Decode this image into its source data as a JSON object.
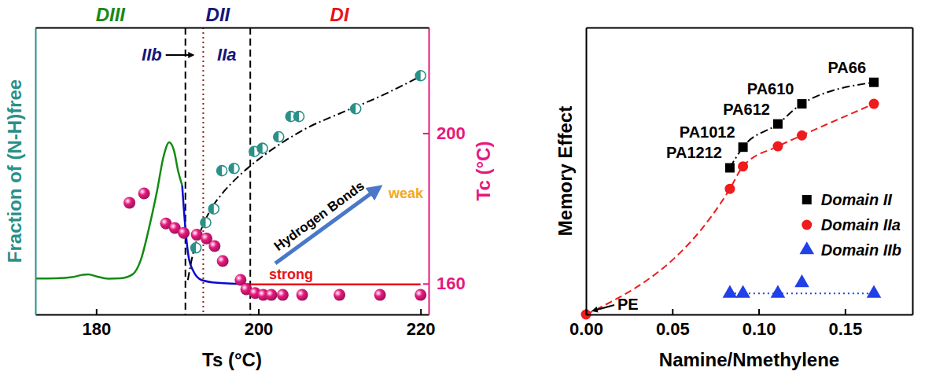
{
  "chart_data": [
    {
      "type": "line",
      "x_label": "Ts (°C)",
      "y_label": "Fraction of (N-H)free",
      "y2_label": "Tc (°C)",
      "xlim": [
        172.5,
        221
      ],
      "xticks": [
        180,
        200,
        220
      ],
      "ylim": [
        0,
        1
      ],
      "y2lim": [
        151.8,
        228.1
      ],
      "y2ticks": [
        160,
        200
      ],
      "regions": [
        "DIII",
        "DII",
        "DI"
      ],
      "subregions": [
        "IIb",
        "IIa"
      ],
      "vlines": [
        {
          "x": 191,
          "line_style": "dashed"
        },
        {
          "x": 199,
          "line_style": "dashed"
        },
        {
          "x": 193.2,
          "line_style": "dotted"
        }
      ],
      "annotations": [
        "Hydrogen Bonds",
        "strong",
        "weak"
      ],
      "series": [
        {
          "type": "line",
          "color": "#128c12",
          "x": [
            172.5,
            175,
            177,
            178.3,
            179,
            180,
            181.5,
            183,
            184.5,
            185.5,
            186.5,
            187.5,
            188.3,
            189,
            189.6,
            190.1,
            190.6
          ],
          "values": [
            0.125,
            0.126,
            0.13,
            0.138,
            0.14,
            0.133,
            0.125,
            0.126,
            0.14,
            0.19,
            0.3,
            0.43,
            0.55,
            0.6,
            0.57,
            0.5,
            0.45
          ]
        },
        {
          "type": "line",
          "color": "#0a0ad0",
          "x": [
            190.6,
            191,
            191.4,
            192,
            193,
            195,
            199
          ],
          "values": [
            0.45,
            0.3,
            0.2,
            0.15,
            0.12,
            0.11,
            0.105
          ]
        },
        {
          "type": "line",
          "color": "#e8141a",
          "x": [
            199,
            220
          ],
          "values": [
            0.105,
            0.105
          ]
        },
        {
          "type": "scatter",
          "marker": "half-circle",
          "color": "#2a9088",
          "x": [
            192.3,
            193.5,
            194.5,
            195.5,
            197,
            199.5,
            200.5,
            202.5,
            204,
            205,
            212,
            220
          ],
          "values": [
            0.232,
            0.32,
            0.368,
            0.501,
            0.509,
            0.568,
            0.579,
            0.619,
            0.69,
            0.69,
            0.717,
            0.832
          ]
        },
        {
          "type": "line",
          "line_style": "dash-dot",
          "color": "#000000",
          "x": [
            191.3,
            192,
            193,
            194,
            195.5,
            197.5,
            200,
            203,
            206,
            210,
            215,
            220
          ],
          "values": [
            0.12,
            0.22,
            0.3,
            0.36,
            0.42,
            0.48,
            0.54,
            0.6,
            0.65,
            0.7,
            0.76,
            0.83
          ]
        },
        {
          "type": "scatter",
          "marker": "sphere",
          "color": "#e6197f",
          "axis": "y2",
          "x": [
            184.1,
            185.9,
            188.6,
            189.7,
            190.8,
            192.4,
            193.6,
            194.6,
            195.6,
            197.8,
            198.5,
            199.6,
            200.6,
            201.6,
            203,
            205.4,
            210,
            215,
            220
          ],
          "values": [
            181.5,
            184,
            176,
            174.8,
            173.5,
            173,
            172,
            170,
            166,
            161,
            158.5,
            157.5,
            157,
            157,
            157,
            157,
            157,
            157,
            157
          ]
        }
      ]
    },
    {
      "type": "scatter",
      "x_label": "Namine/Nmethylene",
      "y_label": "Memory Effect",
      "xlim": [
        0,
        0.189
      ],
      "xticks": [
        {
          "value": 0,
          "label": "0.00"
        },
        0.05,
        {
          "value": 0.1,
          "label": "0.10"
        },
        0.15
      ],
      "ylim": [
        0,
        1
      ],
      "legend": "right",
      "series": [
        {
          "name": "Domain II",
          "color": "#000000",
          "marker": "square",
          "line_style": "dash-dot",
          "x": [
            0.0833,
            0.0909,
            0.1111,
            0.125,
            0.1667
          ],
          "values": [
            0.511,
            0.583,
            0.664,
            0.734,
            0.809
          ],
          "labels": [
            "PA1212",
            "PA1012",
            "PA612",
            "PA610",
            "PA66"
          ]
        },
        {
          "name": "Domain IIa",
          "color": "#ee1c1c",
          "marker": "circle",
          "line_style": "dashed",
          "x": [
            0,
            0.0833,
            0.0909,
            0.1111,
            0.125,
            0.1667
          ],
          "values": [
            0,
            0.438,
            0.516,
            0.586,
            0.624,
            0.734
          ],
          "labels": [
            "PE",
            null,
            null,
            null,
            null,
            null
          ]
        },
        {
          "name": "Domain IIb",
          "color": "#2040e8",
          "marker": "triangle",
          "x": [
            0.0833,
            0.0909,
            0.1111,
            0.125,
            0.1667
          ],
          "values": [
            0.073,
            0.073,
            0.073,
            0.11,
            0.073
          ]
        },
        {
          "type": "line",
          "color": "#2040e8",
          "line_style": "dotted",
          "x": [
            0.0833,
            0.1667
          ],
          "values": [
            0.073,
            0.073
          ]
        }
      ]
    }
  ]
}
